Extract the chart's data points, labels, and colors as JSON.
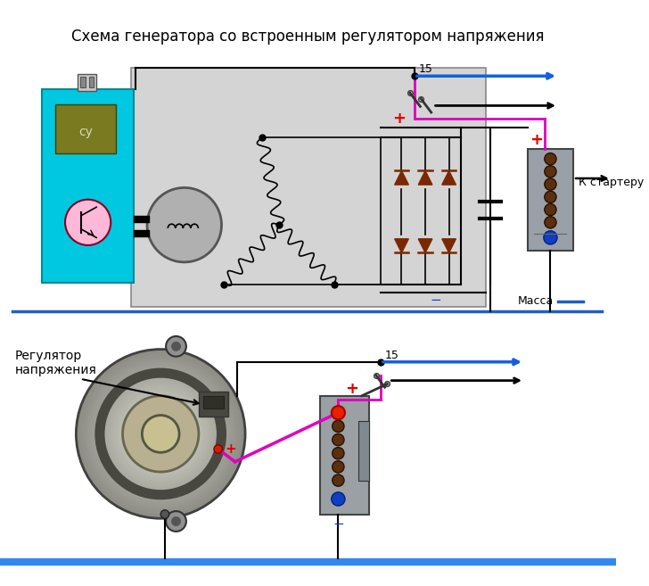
{
  "title": "Схема генератора со встроенным регулятором напряжения",
  "title_fontsize": 12,
  "bg_color": "#ffffff",
  "fig_width": 7.28,
  "fig_height": 6.57,
  "label_massa": "Масса",
  "label_k_starter": "К стартеру",
  "label_reglator": "Регулятор\nнапряжения",
  "label_su": "су",
  "label_15": "15",
  "cyan_color": "#00c8e0",
  "gray_box_color": "#d0d0d0",
  "olive_color": "#7a7a20",
  "pink_color": "#ffb8d8",
  "rotor_gray": "#b0b0b0",
  "battery_color": "#9aa0a8",
  "diode_color": "#7a2800",
  "blue_arrow_color": "#1060e0",
  "magenta_color": "#e000c0",
  "red_color": "#e00000",
  "blue_text_color": "#0040c0",
  "ground_blue": "#2060c0",
  "alt_outer": "#a8a890",
  "alt_mid": "#b8b8a0",
  "alt_inner": "#c8c0a0",
  "alt_hub": "#d0c890"
}
